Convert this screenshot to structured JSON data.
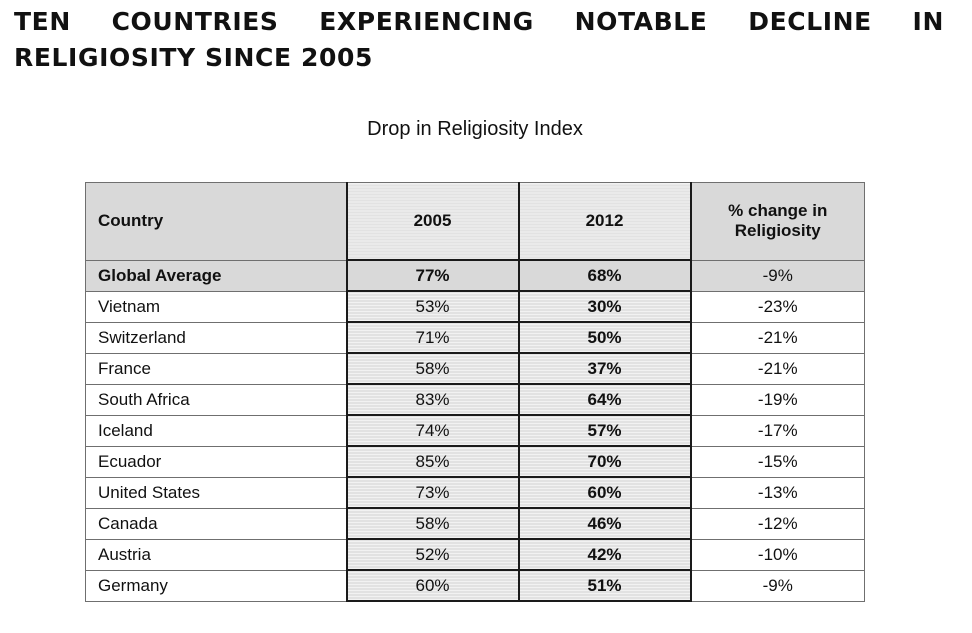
{
  "header": {
    "title": "TEN COUNTRIES EXPERIENCING NOTABLE DECLINE IN RELIGIOSITY SINCE 2005"
  },
  "chart_data": {
    "type": "table",
    "title": "Drop in Religiosity Index",
    "columns": [
      "Country",
      "2005",
      "2012",
      "% change in Religiosity"
    ],
    "rows": [
      {
        "country": "Global Average",
        "y2005": "77%",
        "y2012": "68%",
        "change": "-9%"
      },
      {
        "country": "Vietnam",
        "y2005": "53%",
        "y2012": "30%",
        "change": "-23%"
      },
      {
        "country": "Switzerland",
        "y2005": "71%",
        "y2012": "50%",
        "change": "-21%"
      },
      {
        "country": "France",
        "y2005": "58%",
        "y2012": "37%",
        "change": "-21%"
      },
      {
        "country": "South Africa",
        "y2005": "83%",
        "y2012": "64%",
        "change": "-19%"
      },
      {
        "country": "Iceland",
        "y2005": "74%",
        "y2012": "57%",
        "change": "-17%"
      },
      {
        "country": "Ecuador",
        "y2005": "85%",
        "y2012": "70%",
        "change": "-15%"
      },
      {
        "country": "United States",
        "y2005": "73%",
        "y2012": "60%",
        "change": "-13%"
      },
      {
        "country": "Canada",
        "y2005": "58%",
        "y2012": "46%",
        "change": "-12%"
      },
      {
        "country": "Austria",
        "y2005": "52%",
        "y2012": "42%",
        "change": "-10%"
      },
      {
        "country": "Germany",
        "y2005": "60%",
        "y2012": "51%",
        "change": "-9%"
      }
    ]
  },
  "colors": {
    "header_fill": "#d9d9d9",
    "year_column_fill": "#e2e2e2",
    "border": "#6f6f6f"
  }
}
